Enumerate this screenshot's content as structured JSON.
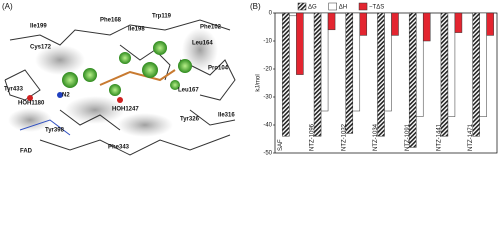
{
  "panel_a": {
    "label": "(A)",
    "residues": [
      "Ile199",
      "Phe168",
      "Trp119",
      "Phe102",
      "Ile198",
      "Leu164",
      "Cys172",
      "Tyr433",
      "Pro104",
      "HOH1180",
      "N2",
      "HOH1247",
      "Leu167",
      "Tyr398",
      "Tyr326",
      "Ile316",
      "FAD",
      "Phe343"
    ]
  },
  "chart_data": {
    "type": "bar",
    "panel_label": "(B)",
    "y_label": "kJ/mol",
    "categories": [
      "SAF",
      "NTZ-1096",
      "NTZ-1032",
      "NTZ-1034",
      "NTZ-1091",
      "NTZ-1441",
      "NTZ-1471"
    ],
    "series": [
      {
        "name": "ΔG",
        "color": "#222222",
        "hatch": true,
        "values": [
          -44,
          -44,
          -43,
          -44,
          -48,
          -44,
          -44
        ]
      },
      {
        "name": "ΔH",
        "color": "#ffffff",
        "hatch": false,
        "values": [
          -1,
          -35,
          -35,
          -35,
          -37,
          -37,
          -37
        ]
      },
      {
        "name": "−TΔS",
        "color": "#e32530",
        "hatch": false,
        "values": [
          -22,
          -6,
          -8,
          -8,
          -10,
          -7,
          -8
        ]
      }
    ],
    "ylim": [
      -50,
      0
    ],
    "yticks": [
      0,
      -10,
      -20,
      -30,
      -40,
      -50
    ],
    "grid": false
  }
}
